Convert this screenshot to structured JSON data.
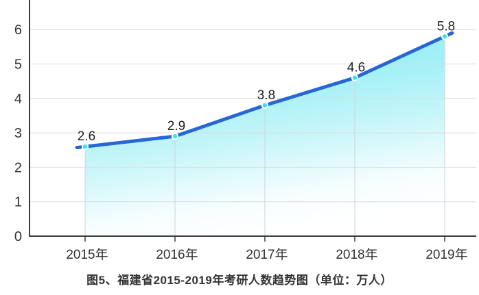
{
  "chart_data": {
    "type": "area",
    "categories": [
      "2015年",
      "2016年",
      "2017年",
      "2018年",
      "2019年"
    ],
    "values": [
      2.6,
      2.9,
      3.8,
      4.6,
      5.8
    ],
    "point_labels": [
      "2.6",
      "2.9",
      "3.8",
      "4.6",
      "5.8"
    ],
    "title": "图5、福建省2015-2019年考研人数趋势图（单位：万人）",
    "xlabel": "",
    "ylabel": "",
    "unit": "万人",
    "ylim": [
      0,
      6.9
    ],
    "yticks": [
      0,
      1,
      2,
      3,
      4,
      5,
      6
    ],
    "grid": true,
    "legend_position": "none",
    "colors": {
      "line": "#2767d5",
      "marker": "#3fe3ea",
      "marker_ring": "#ffffff",
      "grid": "#dcdcdc",
      "axis": "#3a3a3a",
      "drop_line": "#c9d5d8",
      "tick_label": "#333333",
      "data_label": "#1f1f1f"
    },
    "area_stops": [
      {
        "offset": 0,
        "color": "#8beef4"
      },
      {
        "offset": 0.3,
        "color": "#a6f1f6"
      },
      {
        "offset": 0.55,
        "color": "#c9f6f9"
      },
      {
        "offset": 0.82,
        "color": "#f4fdfe"
      },
      {
        "offset": 1,
        "color": "#ffffff"
      }
    ]
  }
}
